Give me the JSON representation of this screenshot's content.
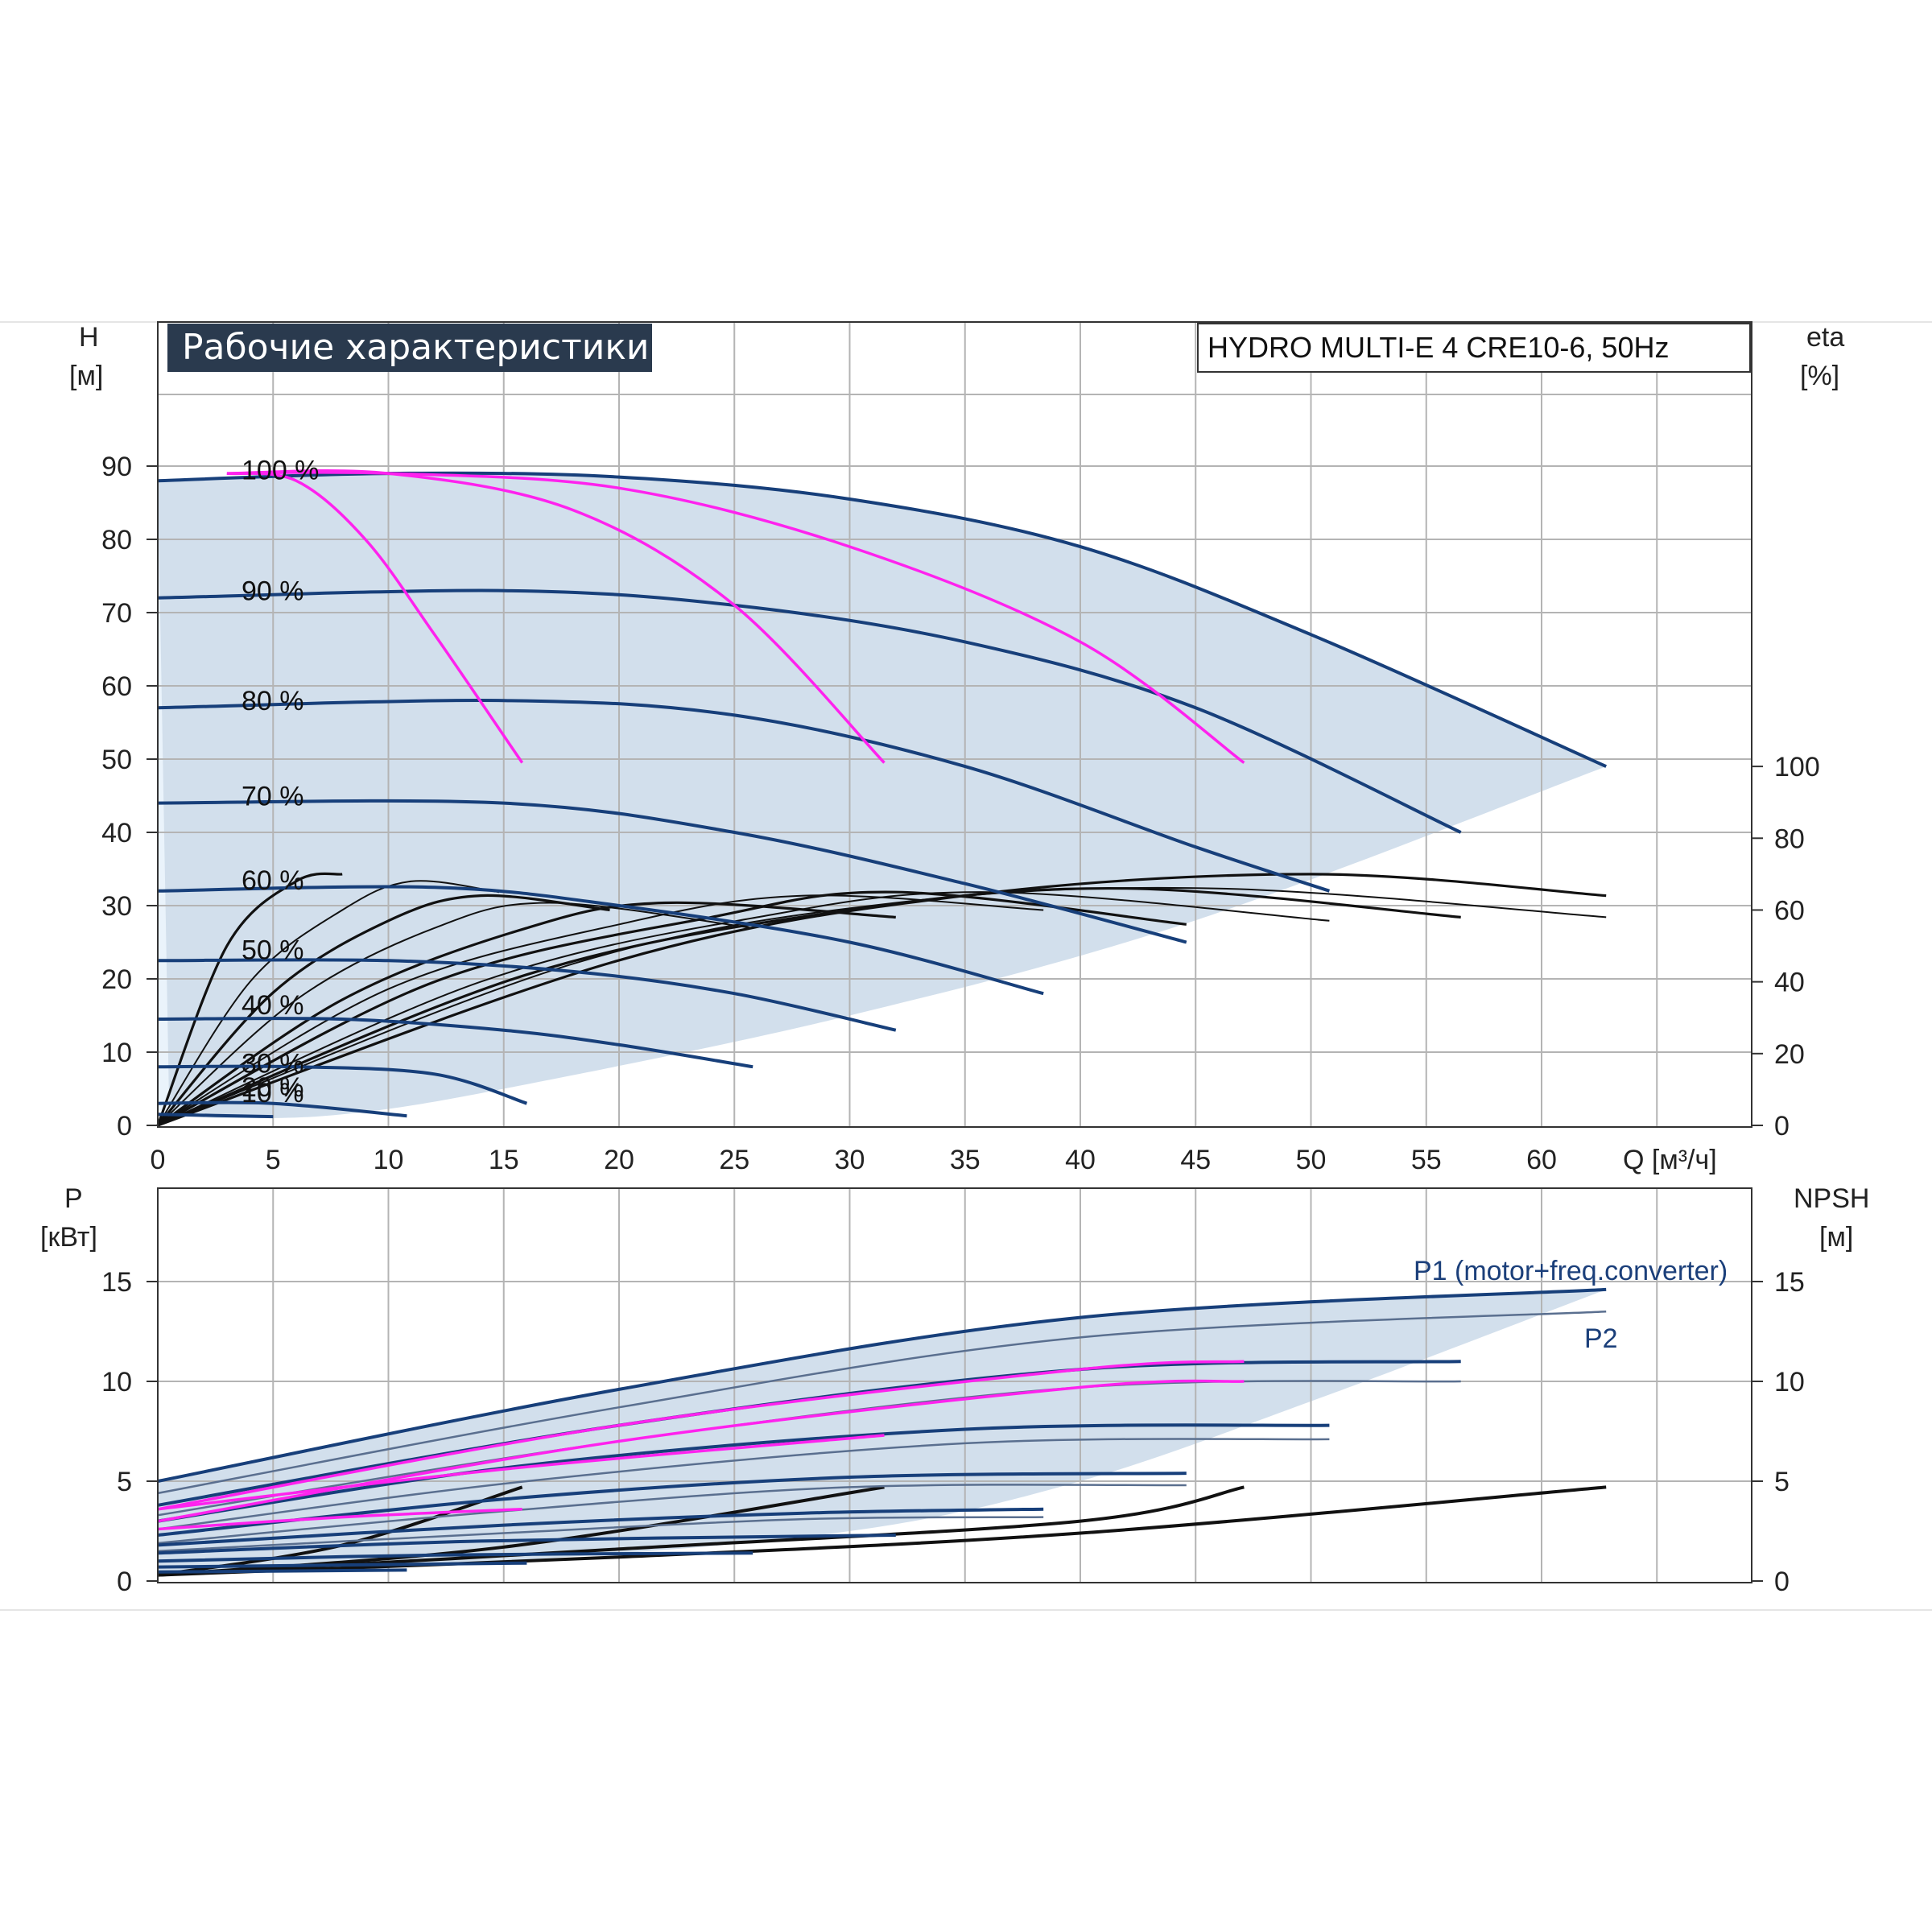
{
  "header": {
    "title": "Рабочие характеристики",
    "model": "HYDRO MULTI-E 4 CRE10-6, 50Hz"
  },
  "colors": {
    "qh_curve": "#173f7a",
    "system_curve": "#ff22ee",
    "efficiency_curve": "#111111",
    "operating_area": "#d2dfec",
    "operating_area_light": "#eaf3fb",
    "title_bg": "#2a3a4e"
  },
  "chart_data": [
    {
      "type": "line",
      "title": "Рабочие характеристики",
      "subtitle": "HYDRO MULTI-E 4 CRE10-6, 50Hz",
      "xlabel": "Q [м³/ч]",
      "ylabel_left": "H\n[м]",
      "ylabel_right": "eta\n[%]",
      "xlim": [
        0,
        65
      ],
      "ylim": [
        0,
        100
      ],
      "x_ticks": [
        "0",
        "5",
        "10",
        "15",
        "20",
        "25",
        "30",
        "35",
        "40",
        "45",
        "50",
        "55",
        "60"
      ],
      "y_ticks_left": [
        "0",
        "10",
        "20",
        "30",
        "40",
        "50",
        "60",
        "70",
        "80",
        "90"
      ],
      "y_ticks_right": [
        "0",
        "20",
        "40",
        "60",
        "80",
        "100"
      ],
      "speed_labels": [
        "100 %",
        "90 %",
        "80 %",
        "70 %",
        "60 %",
        "50 %",
        "40 %",
        "30 %",
        "20 %",
        "10 %"
      ],
      "grid": true,
      "qh_series": [
        {
          "name": "100 %",
          "q": [
            0,
            10,
            20,
            30,
            40,
            50,
            62.8
          ],
          "h": [
            88,
            89,
            88.5,
            85.5,
            79,
            67,
            49
          ]
        },
        {
          "name": "90 %",
          "q": [
            0,
            15,
            25,
            35,
            45,
            56.5
          ],
          "h": [
            72,
            73,
            71,
            66,
            57,
            40
          ]
        },
        {
          "name": "80 %",
          "q": [
            0,
            15,
            25,
            35,
            45,
            50.8
          ],
          "h": [
            57,
            58,
            56,
            49,
            38,
            32
          ]
        },
        {
          "name": "70 %",
          "q": [
            0,
            15,
            25,
            35,
            44.6
          ],
          "h": [
            44,
            44,
            40,
            33,
            25
          ]
        },
        {
          "name": "60 %",
          "q": [
            0,
            12,
            20,
            30,
            38.4
          ],
          "h": [
            32,
            32.5,
            30,
            25,
            18
          ]
        },
        {
          "name": "50 %",
          "q": [
            0,
            10,
            18,
            25,
            32
          ],
          "h": [
            22.5,
            22.5,
            21,
            18,
            13
          ]
        },
        {
          "name": "40 %",
          "q": [
            0,
            8,
            15,
            20,
            25.8
          ],
          "h": [
            14.5,
            14.5,
            13,
            11,
            8
          ]
        },
        {
          "name": "30 %",
          "q": [
            0,
            6,
            12,
            16
          ],
          "h": [
            8,
            8,
            7,
            3
          ]
        },
        {
          "name": "20 %",
          "q": [
            0,
            5,
            10.8
          ],
          "h": [
            3,
            3,
            1.3
          ]
        },
        {
          "name": "10 %",
          "q": [
            0,
            5
          ],
          "h": [
            1.5,
            1.2
          ]
        }
      ],
      "system_curves": [
        {
          "q": [
            3,
            6,
            9,
            12,
            15.8
          ],
          "h": [
            89,
            88,
            80,
            67,
            49.5
          ]
        },
        {
          "q": [
            3,
            10,
            18,
            25,
            31.5
          ],
          "h": [
            89,
            89,
            84,
            71,
            49.5
          ]
        },
        {
          "q": [
            3,
            10,
            20,
            30,
            40,
            47.1
          ],
          "h": [
            89,
            89,
            87,
            79,
            66,
            49.5
          ]
        }
      ],
      "efficiency_curves": [
        {
          "q": [
            0,
            3,
            6,
            8
          ],
          "eta": [
            0,
            50,
            68,
            70
          ]
        },
        {
          "q": [
            0,
            4,
            8,
            11,
            14.8
          ],
          "eta": [
            0,
            40,
            60,
            68,
            65
          ]
        },
        {
          "q": [
            0,
            5,
            10,
            14,
            19.6
          ],
          "eta": [
            0,
            37,
            57,
            64,
            60
          ]
        },
        {
          "q": [
            0,
            6,
            12,
            17,
            25.8
          ],
          "eta": [
            0,
            35,
            55,
            62,
            55
          ]
        },
        {
          "q": [
            0,
            8,
            16,
            22,
            32
          ],
          "eta": [
            0,
            35,
            55,
            62,
            58
          ]
        },
        {
          "q": [
            0,
            10,
            20,
            28,
            38.4
          ],
          "eta": [
            0,
            38,
            56,
            64,
            60
          ]
        },
        {
          "q": [
            0,
            12,
            24,
            32,
            44.6
          ],
          "eta": [
            0,
            40,
            58,
            65,
            56
          ]
        },
        {
          "q": [
            0,
            14,
            26,
            36,
            50.8
          ],
          "eta": [
            0,
            40,
            58,
            65,
            57
          ]
        },
        {
          "q": [
            0,
            16,
            30,
            42,
            56.5
          ],
          "eta": [
            0,
            42,
            60,
            66,
            58
          ]
        },
        {
          "q": [
            0,
            18,
            32,
            46,
            62.8
          ],
          "eta": [
            0,
            45,
            62,
            66,
            58
          ]
        },
        {
          "q": [
            0,
            20,
            35,
            50,
            62.8
          ],
          "eta": [
            0,
            46,
            64,
            70,
            64
          ]
        }
      ]
    },
    {
      "type": "line",
      "xlabel": "",
      "ylabel_left": "P\n[кВт]",
      "ylabel_right": "NPSH\n[м]",
      "xlim": [
        0,
        65
      ],
      "ylim": [
        0,
        15
      ],
      "y_ticks_left": [
        "0",
        "5",
        "10",
        "15"
      ],
      "y_ticks_right": [
        "0",
        "5",
        "10",
        "15"
      ],
      "grid": true,
      "series_labels": [
        "P1 (motor+freq.converter)",
        "P2"
      ],
      "p1_series": [
        {
          "q": [
            0,
            20,
            40,
            62.8
          ],
          "p": [
            5,
            9.6,
            13.2,
            14.6
          ]
        },
        {
          "q": [
            0,
            20,
            40,
            56.5
          ],
          "p": [
            3.8,
            7.8,
            10.6,
            11
          ]
        },
        {
          "q": [
            0,
            16,
            35,
            50.8
          ],
          "p": [
            3,
            5.8,
            7.6,
            7.8
          ]
        },
        {
          "q": [
            0,
            15,
            30,
            44.6
          ],
          "p": [
            2.3,
            4.1,
            5.2,
            5.4
          ]
        },
        {
          "q": [
            0,
            15,
            28,
            38.4
          ],
          "p": [
            1.8,
            2.8,
            3.4,
            3.6
          ]
        },
        {
          "q": [
            0,
            14,
            32
          ],
          "p": [
            1.4,
            2,
            2.3
          ]
        },
        {
          "q": [
            0,
            12,
            25.8
          ],
          "p": [
            1,
            1.3,
            1.4
          ]
        },
        {
          "q": [
            0,
            16
          ],
          "p": [
            0.7,
            0.9
          ]
        },
        {
          "q": [
            0,
            10.8
          ],
          "p": [
            0.45,
            0.55
          ]
        }
      ],
      "p2_series": [
        {
          "q": [
            0,
            20,
            40,
            62.8
          ],
          "p": [
            4.4,
            8.7,
            12.2,
            13.5
          ]
        },
        {
          "q": [
            0,
            20,
            40,
            56.5
          ],
          "p": [
            3.3,
            7,
            9.7,
            10
          ]
        },
        {
          "q": [
            0,
            16,
            35,
            50.8
          ],
          "p": [
            2.6,
            5,
            6.9,
            7.1
          ]
        },
        {
          "q": [
            0,
            15,
            30,
            44.6
          ],
          "p": [
            1.9,
            3.5,
            4.7,
            4.8
          ]
        },
        {
          "q": [
            0,
            15,
            28,
            38.4
          ],
          "p": [
            1.5,
            2.4,
            3.1,
            3.2
          ]
        }
      ],
      "system_power": [
        {
          "q": [
            0,
            8,
            15.8
          ],
          "p": [
            2.6,
            3.2,
            3.6
          ]
        },
        {
          "q": [
            0,
            15,
            31.5
          ],
          "p": [
            3.6,
            5.6,
            7.3
          ]
        },
        {
          "q": [
            0,
            20,
            40,
            47.1
          ],
          "p": [
            3.6,
            7.8,
            10.6,
            11
          ]
        },
        {
          "q": [
            0,
            20,
            40,
            47.1
          ],
          "p": [
            3.0,
            7.0,
            9.7,
            10
          ]
        }
      ],
      "npsh_curves": [
        {
          "q": [
            0,
            20,
            40,
            62.8
          ],
          "npsh": [
            0.3,
            1.2,
            2.4,
            4.7
          ]
        },
        {
          "q": [
            0,
            20,
            40,
            47.1
          ],
          "npsh": [
            0.3,
            1.6,
            3.0,
            4.7
          ]
        },
        {
          "q": [
            0,
            15,
            31.5
          ],
          "npsh": [
            0.3,
            1.7,
            4.7
          ]
        },
        {
          "q": [
            0,
            8,
            15.8
          ],
          "npsh": [
            0.3,
            1.8,
            4.7
          ]
        }
      ]
    }
  ]
}
